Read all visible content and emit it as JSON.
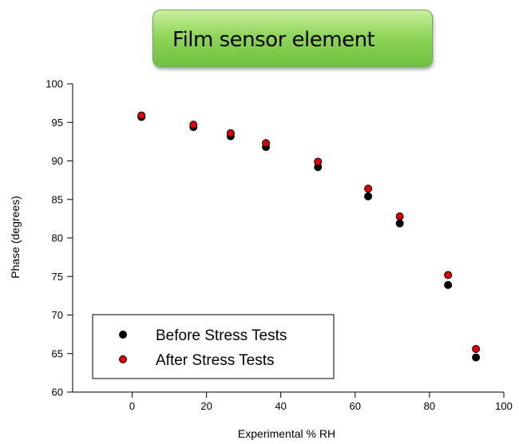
{
  "banner": {
    "title": "Film sensor element"
  },
  "chart_data": {
    "type": "scatter",
    "title": "Film sensor element",
    "xlabel": "Experimental % RH",
    "ylabel": "Phase (degrees)",
    "xlim": [
      -16,
      100
    ],
    "ylim": [
      60,
      100
    ],
    "xticks": [
      0,
      20,
      40,
      60,
      80,
      100
    ],
    "yticks": [
      60,
      65,
      70,
      75,
      80,
      85,
      90,
      95,
      100
    ],
    "grid": false,
    "legend_position": "bottom-left",
    "series": [
      {
        "name": "Before Stress Tests",
        "color": "#000000",
        "x": [
          2.5,
          16.5,
          26.5,
          36,
          50,
          63.5,
          72,
          85,
          92.5
        ],
        "y": [
          95.7,
          94.4,
          93.2,
          91.8,
          89.2,
          85.4,
          81.9,
          73.9,
          64.5
        ]
      },
      {
        "name": "After Stress Tests",
        "color": "#e00000",
        "x": [
          2.5,
          16.5,
          26.5,
          36,
          50,
          63.5,
          72,
          85,
          92.5
        ],
        "y": [
          95.9,
          94.7,
          93.6,
          92.3,
          89.9,
          86.4,
          82.8,
          75.2,
          65.6
        ]
      }
    ]
  }
}
